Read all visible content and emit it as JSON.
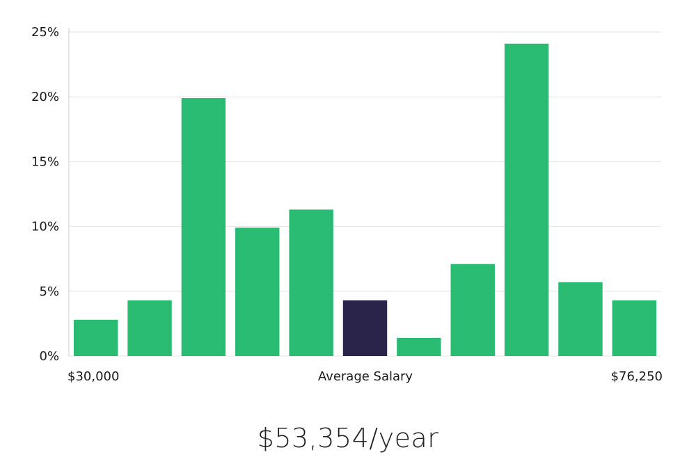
{
  "chart_data": {
    "type": "bar",
    "title": "",
    "xlabel": "Average Salary",
    "ylabel": "",
    "x_range_labels": {
      "min": "$30,000",
      "max": "$76,250"
    },
    "ylim": [
      0,
      25
    ],
    "yticks": [
      0,
      5,
      10,
      15,
      20,
      25
    ],
    "ytick_labels": [
      "0%",
      "5%",
      "10%",
      "15%",
      "20%",
      "25%"
    ],
    "values": [
      2.8,
      4.3,
      19.9,
      9.9,
      11.3,
      4.3,
      1.4,
      7.1,
      24.1,
      5.7,
      4.3
    ],
    "highlight_index": 5,
    "grid": true,
    "colors": {
      "bar": "#2abb73",
      "highlight": "#2a2548",
      "grid": "#e2e2e2",
      "axis": "#d0d0d0",
      "text": "#1a1a1a"
    }
  },
  "summary": {
    "salary_text": "$53,354/year"
  }
}
